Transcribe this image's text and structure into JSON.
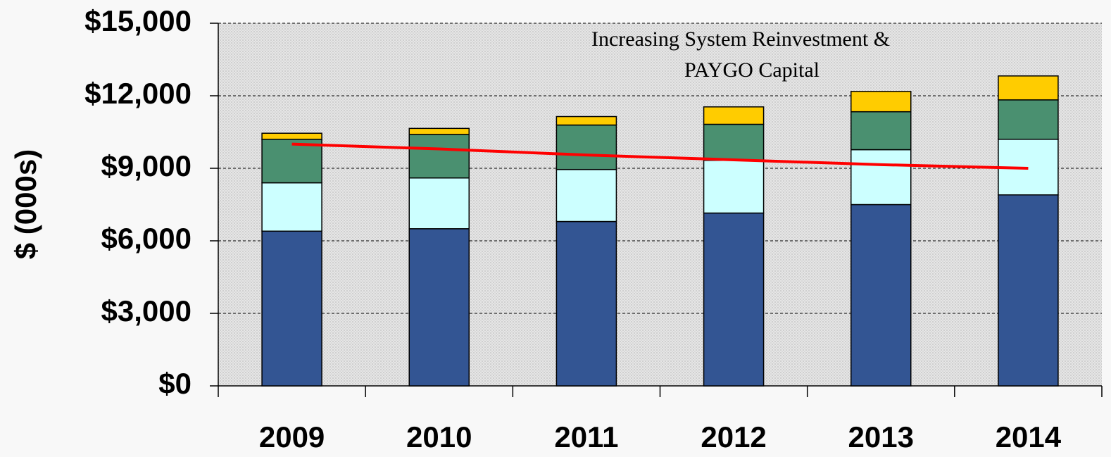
{
  "chart_data": {
    "type": "bar",
    "stacked": true,
    "y_label": "$ (000s)",
    "annotation": [
      "Increasing System Reinvestment &",
      "PAYGO Capital"
    ],
    "categories": [
      "2009",
      "2010",
      "2011",
      "2012",
      "2013",
      "2014"
    ],
    "series": [
      {
        "color": "#335593",
        "values": [
          6400,
          6500,
          6800,
          7150,
          7500,
          7900
        ]
      },
      {
        "color": "#ccffff",
        "values": [
          2000,
          2100,
          2150,
          2180,
          2270,
          2300
        ]
      },
      {
        "color": "#4a9070",
        "values": [
          1800,
          1800,
          1840,
          1490,
          1570,
          1630
        ]
      },
      {
        "color": "#ffcc00",
        "values": [
          250,
          250,
          350,
          720,
          840,
          990
        ]
      },
      {
        "type": "line",
        "color": "#ff0000",
        "values": [
          10000,
          9800,
          9550,
          9350,
          9150,
          9000
        ]
      }
    ],
    "ylim": [
      0,
      15000
    ],
    "yticks": [
      {
        "value": 0,
        "label": "$0"
      },
      {
        "value": 3000,
        "label": "$3,000"
      },
      {
        "value": 6000,
        "label": "$6,000"
      },
      {
        "value": 9000,
        "label": "$9,000"
      },
      {
        "value": 12000,
        "label": "$12,000"
      },
      {
        "value": 15000,
        "label": "$15,000"
      }
    ],
    "grid": true
  }
}
